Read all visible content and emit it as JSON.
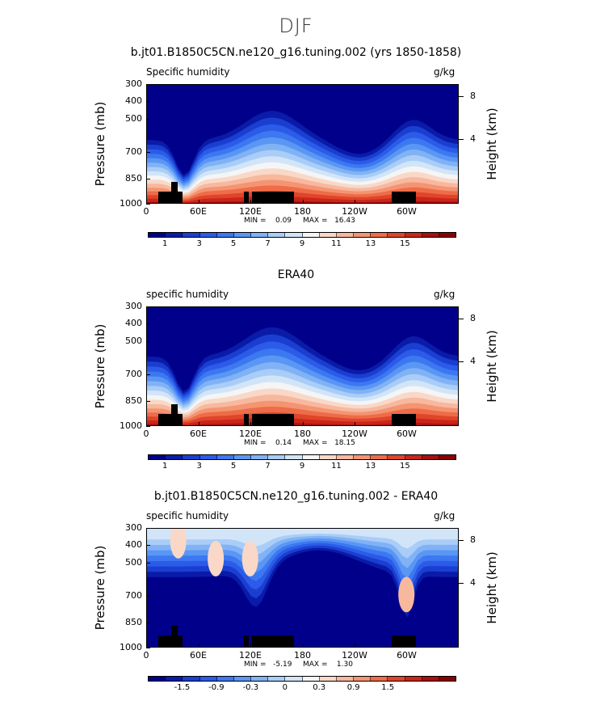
{
  "figure_title": "DJF",
  "chart_data": [
    {
      "type": "heatmap",
      "title": "b.jt01.B1850C5CN.ne120_g16.tuning.002 (yrs 1850-1858)",
      "subtitle_left": "Specific humidity",
      "subtitle_right": "g/kg",
      "ylabel": "Pressure (mb)",
      "ylabel_right": "Height (km)",
      "yticks": [
        "300",
        "400",
        "500",
        "700",
        "850",
        "1000"
      ],
      "yticks_right": [
        "8",
        "4"
      ],
      "xticks": [
        "0",
        "60E",
        "120E",
        "180",
        "120W",
        "60W"
      ],
      "min_label": "MIN =    0.09",
      "max_label": "MAX =   16.43",
      "colorbar_ticks": [
        "1",
        "3",
        "5",
        "7",
        "9",
        "11",
        "13",
        "15"
      ],
      "colorbar_colors": [
        "#00008b",
        "#0a1ba8",
        "#1a3fd0",
        "#2b5be8",
        "#3c78f0",
        "#5a96f4",
        "#80b2f5",
        "#a9cdf7",
        "#d2e5f8",
        "#f5f5f5",
        "#f9d8c8",
        "#f7b89e",
        "#f49472",
        "#ee6c48",
        "#e0442a",
        "#c9261a",
        "#a80f10",
        "#8b0000"
      ],
      "range": [
        0.09,
        16.43
      ]
    },
    {
      "type": "heatmap",
      "title": "ERA40",
      "subtitle_left": "specific humidity",
      "subtitle_right": "g/kg",
      "ylabel": "Pressure (mb)",
      "ylabel_right": "Height (km)",
      "yticks": [
        "300",
        "400",
        "500",
        "700",
        "850",
        "1000"
      ],
      "yticks_right": [
        "8",
        "4"
      ],
      "xticks": [
        "0",
        "60E",
        "120E",
        "180",
        "120W",
        "60W"
      ],
      "min_label": "MIN =    0.14",
      "max_label": "MAX =   18.15",
      "colorbar_ticks": [
        "1",
        "3",
        "5",
        "7",
        "9",
        "11",
        "13",
        "15"
      ],
      "colorbar_colors": [
        "#00008b",
        "#0a1ba8",
        "#1a3fd0",
        "#2b5be8",
        "#3c78f0",
        "#5a96f4",
        "#80b2f5",
        "#a9cdf7",
        "#d2e5f8",
        "#f5f5f5",
        "#f9d8c8",
        "#f7b89e",
        "#f49472",
        "#ee6c48",
        "#e0442a",
        "#c9261a",
        "#a80f10",
        "#8b0000"
      ],
      "range": [
        0.14,
        18.15
      ]
    },
    {
      "type": "heatmap",
      "title": "b.jt01.B1850C5CN.ne120_g16.tuning.002 - ERA40",
      "subtitle_left": "specific humidity",
      "subtitle_right": "g/kg",
      "ylabel": "Pressure (mb)",
      "ylabel_right": "Height (km)",
      "yticks": [
        "300",
        "400",
        "500",
        "700",
        "850",
        "1000"
      ],
      "yticks_right": [
        "8",
        "4"
      ],
      "xticks": [
        "0",
        "60E",
        "120E",
        "180",
        "120W",
        "60W"
      ],
      "min_label": "MIN =   -5.19",
      "max_label": "MAX =    1.30",
      "colorbar_ticks": [
        "-1.5",
        "-0.9",
        "-0.3",
        "0",
        "0.3",
        "0.9",
        "1.5"
      ],
      "colorbar_colors": [
        "#00008b",
        "#0a1ba8",
        "#1a3fd0",
        "#2b5be8",
        "#3c78f0",
        "#5a96f4",
        "#80b2f5",
        "#a9cdf7",
        "#d2e5f8",
        "#f5f5f5",
        "#f9d8c8",
        "#f7b89e",
        "#f49472",
        "#ee6c48",
        "#e0442a",
        "#c9261a",
        "#a80f10",
        "#8b0000"
      ],
      "range": [
        -5.19,
        1.3
      ]
    }
  ]
}
